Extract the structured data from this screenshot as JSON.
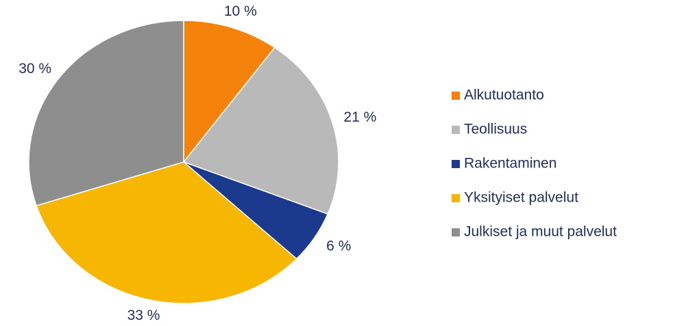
{
  "chart_data": {
    "type": "pie",
    "categories": [
      "Alkutuotanto",
      "Teollisuus",
      "Rakentaminen",
      "Yksityiset palvelut",
      "Julkiset ja muut palvelut"
    ],
    "values": [
      10,
      21,
      6,
      33,
      30
    ],
    "value_labels": [
      "10 %",
      "21 %",
      "6 %",
      "33 %",
      "30 %"
    ],
    "colors": [
      "#f5820a",
      "#b9b9b9",
      "#1b3a8e",
      "#f7b602",
      "#8e8e8e"
    ],
    "legend": "right"
  }
}
